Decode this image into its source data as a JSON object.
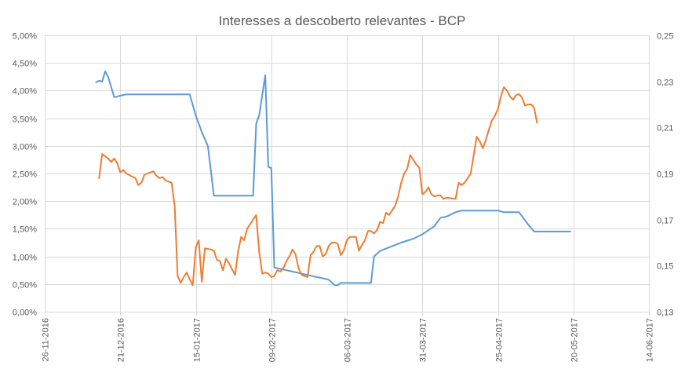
{
  "chart_data": {
    "type": "line",
    "title": "Interesses a descoberto relevantes - BCP",
    "xlabel": "",
    "ylabel": "",
    "x_axis": {
      "type": "date",
      "min": "2016-11-26",
      "max": "2017-06-14",
      "ticks": [
        "26-11-2016",
        "21-12-2016",
        "15-01-2017",
        "09-02-2017",
        "06-03-2017",
        "31-03-2017",
        "25-04-2017",
        "20-05-2017",
        "14-06-2017"
      ],
      "tick_values": [
        "2016-11-26",
        "2016-12-21",
        "2017-01-15",
        "2017-02-09",
        "2017-03-06",
        "2017-03-31",
        "2017-04-25",
        "2017-05-20",
        "2017-06-14"
      ]
    },
    "y_left": {
      "min": 0,
      "max": 0.05,
      "ticks": [
        "0,00%",
        "0,50%",
        "1,00%",
        "1,50%",
        "2,00%",
        "2,50%",
        "3,00%",
        "3,50%",
        "4,00%",
        "4,50%",
        "5,00%"
      ],
      "tick_values": [
        0,
        0.005,
        0.01,
        0.015,
        0.02,
        0.025,
        0.03,
        0.035,
        0.04,
        0.045,
        0.05
      ]
    },
    "y_right": {
      "min": 0.13,
      "max": 0.25,
      "ticks": [
        "0,13",
        "0,15",
        "0,17",
        "0,19",
        "0,21",
        "0,23",
        "0,25"
      ],
      "tick_values": [
        0.13,
        0.15,
        0.17,
        0.19,
        0.21,
        0.23,
        0.25
      ]
    },
    "grid": true,
    "legend": "none",
    "series": [
      {
        "axis": "left",
        "color": "#5b9bd5",
        "points": [
          [
            "2016-12-13",
            0.0415
          ],
          [
            "2016-12-14",
            0.0418
          ],
          [
            "2016-12-15",
            0.0416
          ],
          [
            "2016-12-16",
            0.0435
          ],
          [
            "2016-12-17",
            0.0425
          ],
          [
            "2016-12-19",
            0.0388
          ],
          [
            "2016-12-22",
            0.0392
          ],
          [
            "2016-12-23",
            0.0393
          ],
          [
            "2017-01-13",
            0.0393
          ],
          [
            "2017-01-15",
            0.0355
          ],
          [
            "2017-01-17",
            0.0325
          ],
          [
            "2017-01-19",
            0.03
          ],
          [
            "2017-01-21",
            0.021
          ],
          [
            "2017-01-22",
            0.021
          ],
          [
            "2017-02-03",
            0.021
          ],
          [
            "2017-02-04",
            0.034
          ],
          [
            "2017-02-05",
            0.0355
          ],
          [
            "2017-02-07",
            0.0428
          ],
          [
            "2017-02-08",
            0.0262
          ],
          [
            "2017-02-09",
            0.026
          ],
          [
            "2017-02-10",
            0.008
          ],
          [
            "2017-02-28",
            0.0058
          ],
          [
            "2017-03-02",
            0.0048
          ],
          [
            "2017-03-03",
            0.0048
          ],
          [
            "2017-03-04",
            0.0052
          ],
          [
            "2017-03-13",
            0.0052
          ],
          [
            "2017-03-14",
            0.0052
          ],
          [
            "2017-03-15",
            0.01
          ],
          [
            "2017-03-17",
            0.011
          ],
          [
            "2017-03-24",
            0.0125
          ],
          [
            "2017-03-28",
            0.0132
          ],
          [
            "2017-03-31",
            0.014
          ],
          [
            "2017-04-04",
            0.0155
          ],
          [
            "2017-04-06",
            0.017
          ],
          [
            "2017-04-08",
            0.0172
          ],
          [
            "2017-04-11",
            0.018
          ],
          [
            "2017-04-13",
            0.0183
          ],
          [
            "2017-04-25",
            0.0183
          ],
          [
            "2017-04-27",
            0.018
          ],
          [
            "2017-05-02",
            0.018
          ],
          [
            "2017-05-05",
            0.0158
          ],
          [
            "2017-05-07",
            0.0145
          ],
          [
            "2017-05-19",
            0.0145
          ]
        ]
      },
      {
        "axis": "right",
        "color": "#ed7d31",
        "points": [
          [
            "2016-12-14",
            0.188
          ],
          [
            "2016-12-15",
            0.1985
          ],
          [
            "2016-12-16",
            0.1975
          ],
          [
            "2016-12-17",
            0.1965
          ],
          [
            "2016-12-18",
            0.195
          ],
          [
            "2016-12-19",
            0.1965
          ],
          [
            "2016-12-20",
            0.1945
          ],
          [
            "2016-12-21",
            0.1905
          ],
          [
            "2016-12-22",
            0.1915
          ],
          [
            "2016-12-23",
            0.19
          ],
          [
            "2016-12-26",
            0.188
          ],
          [
            "2016-12-27",
            0.185
          ],
          [
            "2016-12-28",
            0.186
          ],
          [
            "2016-12-29",
            0.1895
          ],
          [
            "2016-12-31",
            0.1905
          ],
          [
            "2017-01-01",
            0.191
          ],
          [
            "2017-01-02",
            0.189
          ],
          [
            "2017-01-03",
            0.188
          ],
          [
            "2017-01-04",
            0.1885
          ],
          [
            "2017-01-05",
            0.187
          ],
          [
            "2017-01-06",
            0.1865
          ],
          [
            "2017-01-07",
            0.186
          ],
          [
            "2017-01-08",
            0.176
          ],
          [
            "2017-01-09",
            0.1455
          ],
          [
            "2017-01-10",
            0.1425
          ],
          [
            "2017-01-11",
            0.145
          ],
          [
            "2017-01-12",
            0.147
          ],
          [
            "2017-01-13",
            0.144
          ],
          [
            "2017-01-14",
            0.1415
          ],
          [
            "2017-01-15",
            0.158
          ],
          [
            "2017-01-16",
            0.161
          ],
          [
            "2017-01-17",
            0.143
          ],
          [
            "2017-01-18",
            0.1575
          ],
          [
            "2017-01-20",
            0.157
          ],
          [
            "2017-01-21",
            0.1565
          ],
          [
            "2017-01-22",
            0.1525
          ],
          [
            "2017-01-23",
            0.152
          ],
          [
            "2017-01-24",
            0.148
          ],
          [
            "2017-01-25",
            0.153
          ],
          [
            "2017-01-26",
            0.151
          ],
          [
            "2017-01-28",
            0.146
          ],
          [
            "2017-01-29",
            0.156
          ],
          [
            "2017-01-30",
            0.1625
          ],
          [
            "2017-01-31",
            0.161
          ],
          [
            "2017-02-01",
            0.166
          ],
          [
            "2017-02-02",
            0.168
          ],
          [
            "2017-02-04",
            0.172
          ],
          [
            "2017-02-05",
            0.156
          ],
          [
            "2017-02-06",
            0.1465
          ],
          [
            "2017-02-07",
            0.147
          ],
          [
            "2017-02-08",
            0.1465
          ],
          [
            "2017-02-09",
            0.145
          ],
          [
            "2017-02-10",
            0.1455
          ],
          [
            "2017-02-11",
            0.148
          ],
          [
            "2017-02-12",
            0.1475
          ],
          [
            "2017-02-13",
            0.149
          ],
          [
            "2017-02-14",
            0.152
          ],
          [
            "2017-02-15",
            0.154
          ],
          [
            "2017-02-16",
            0.157
          ],
          [
            "2017-02-17",
            0.155
          ],
          [
            "2017-02-18",
            0.149
          ],
          [
            "2017-02-19",
            0.146
          ],
          [
            "2017-02-20",
            0.1455
          ],
          [
            "2017-02-21",
            0.145
          ],
          [
            "2017-02-22",
            0.1545
          ],
          [
            "2017-02-23",
            0.156
          ],
          [
            "2017-02-24",
            0.1585
          ],
          [
            "2017-02-25",
            0.1585
          ],
          [
            "2017-02-26",
            0.154
          ],
          [
            "2017-02-27",
            0.155
          ],
          [
            "2017-02-28",
            0.1585
          ],
          [
            "2017-03-01",
            0.16
          ],
          [
            "2017-03-02",
            0.16
          ],
          [
            "2017-03-03",
            0.1595
          ],
          [
            "2017-03-04",
            0.1545
          ],
          [
            "2017-03-05",
            0.1565
          ],
          [
            "2017-03-06",
            0.161
          ],
          [
            "2017-03-07",
            0.1625
          ],
          [
            "2017-03-09",
            0.1625
          ],
          [
            "2017-03-10",
            0.1565
          ],
          [
            "2017-03-11",
            0.159
          ],
          [
            "2017-03-12",
            0.161
          ],
          [
            "2017-03-13",
            0.165
          ],
          [
            "2017-03-14",
            0.165
          ],
          [
            "2017-03-15",
            0.164
          ],
          [
            "2017-03-16",
            0.1655
          ],
          [
            "2017-03-17",
            0.169
          ],
          [
            "2017-03-18",
            0.1685
          ],
          [
            "2017-03-19",
            0.173
          ],
          [
            "2017-03-20",
            0.172
          ],
          [
            "2017-03-21",
            0.174
          ],
          [
            "2017-03-22",
            0.176
          ],
          [
            "2017-03-23",
            0.18
          ],
          [
            "2017-03-24",
            0.186
          ],
          [
            "2017-03-25",
            0.19
          ],
          [
            "2017-03-26",
            0.192
          ],
          [
            "2017-03-27",
            0.198
          ],
          [
            "2017-03-28",
            0.196
          ],
          [
            "2017-03-29",
            0.194
          ],
          [
            "2017-03-30",
            0.1925
          ],
          [
            "2017-03-31",
            0.181
          ],
          [
            "2017-04-01",
            0.182
          ],
          [
            "2017-04-02",
            0.184
          ],
          [
            "2017-04-03",
            0.181
          ],
          [
            "2017-04-04",
            0.18
          ],
          [
            "2017-04-05",
            0.1805
          ],
          [
            "2017-04-06",
            0.1805
          ],
          [
            "2017-04-07",
            0.179
          ],
          [
            "2017-04-08",
            0.1795
          ],
          [
            "2017-04-11",
            0.179
          ],
          [
            "2017-04-12",
            0.186
          ],
          [
            "2017-04-13",
            0.185
          ],
          [
            "2017-04-14",
            0.186
          ],
          [
            "2017-04-15",
            0.188
          ],
          [
            "2017-04-16",
            0.19
          ],
          [
            "2017-04-17",
            0.198
          ],
          [
            "2017-04-18",
            0.206
          ],
          [
            "2017-04-19",
            0.204
          ],
          [
            "2017-04-20",
            0.201
          ],
          [
            "2017-04-21",
            0.2045
          ],
          [
            "2017-04-22",
            0.209
          ],
          [
            "2017-04-23",
            0.213
          ],
          [
            "2017-04-24",
            0.215
          ],
          [
            "2017-04-25",
            0.218
          ],
          [
            "2017-04-26",
            0.2235
          ],
          [
            "2017-04-27",
            0.2275
          ],
          [
            "2017-04-28",
            0.226
          ],
          [
            "2017-04-29",
            0.2235
          ],
          [
            "2017-04-30",
            0.222
          ],
          [
            "2017-05-01",
            0.224
          ],
          [
            "2017-05-02",
            0.2245
          ],
          [
            "2017-05-03",
            0.223
          ],
          [
            "2017-05-04",
            0.2195
          ],
          [
            "2017-05-05",
            0.22
          ],
          [
            "2017-05-06",
            0.22
          ],
          [
            "2017-05-07",
            0.2185
          ],
          [
            "2017-05-08",
            0.212
          ]
        ]
      }
    ]
  }
}
